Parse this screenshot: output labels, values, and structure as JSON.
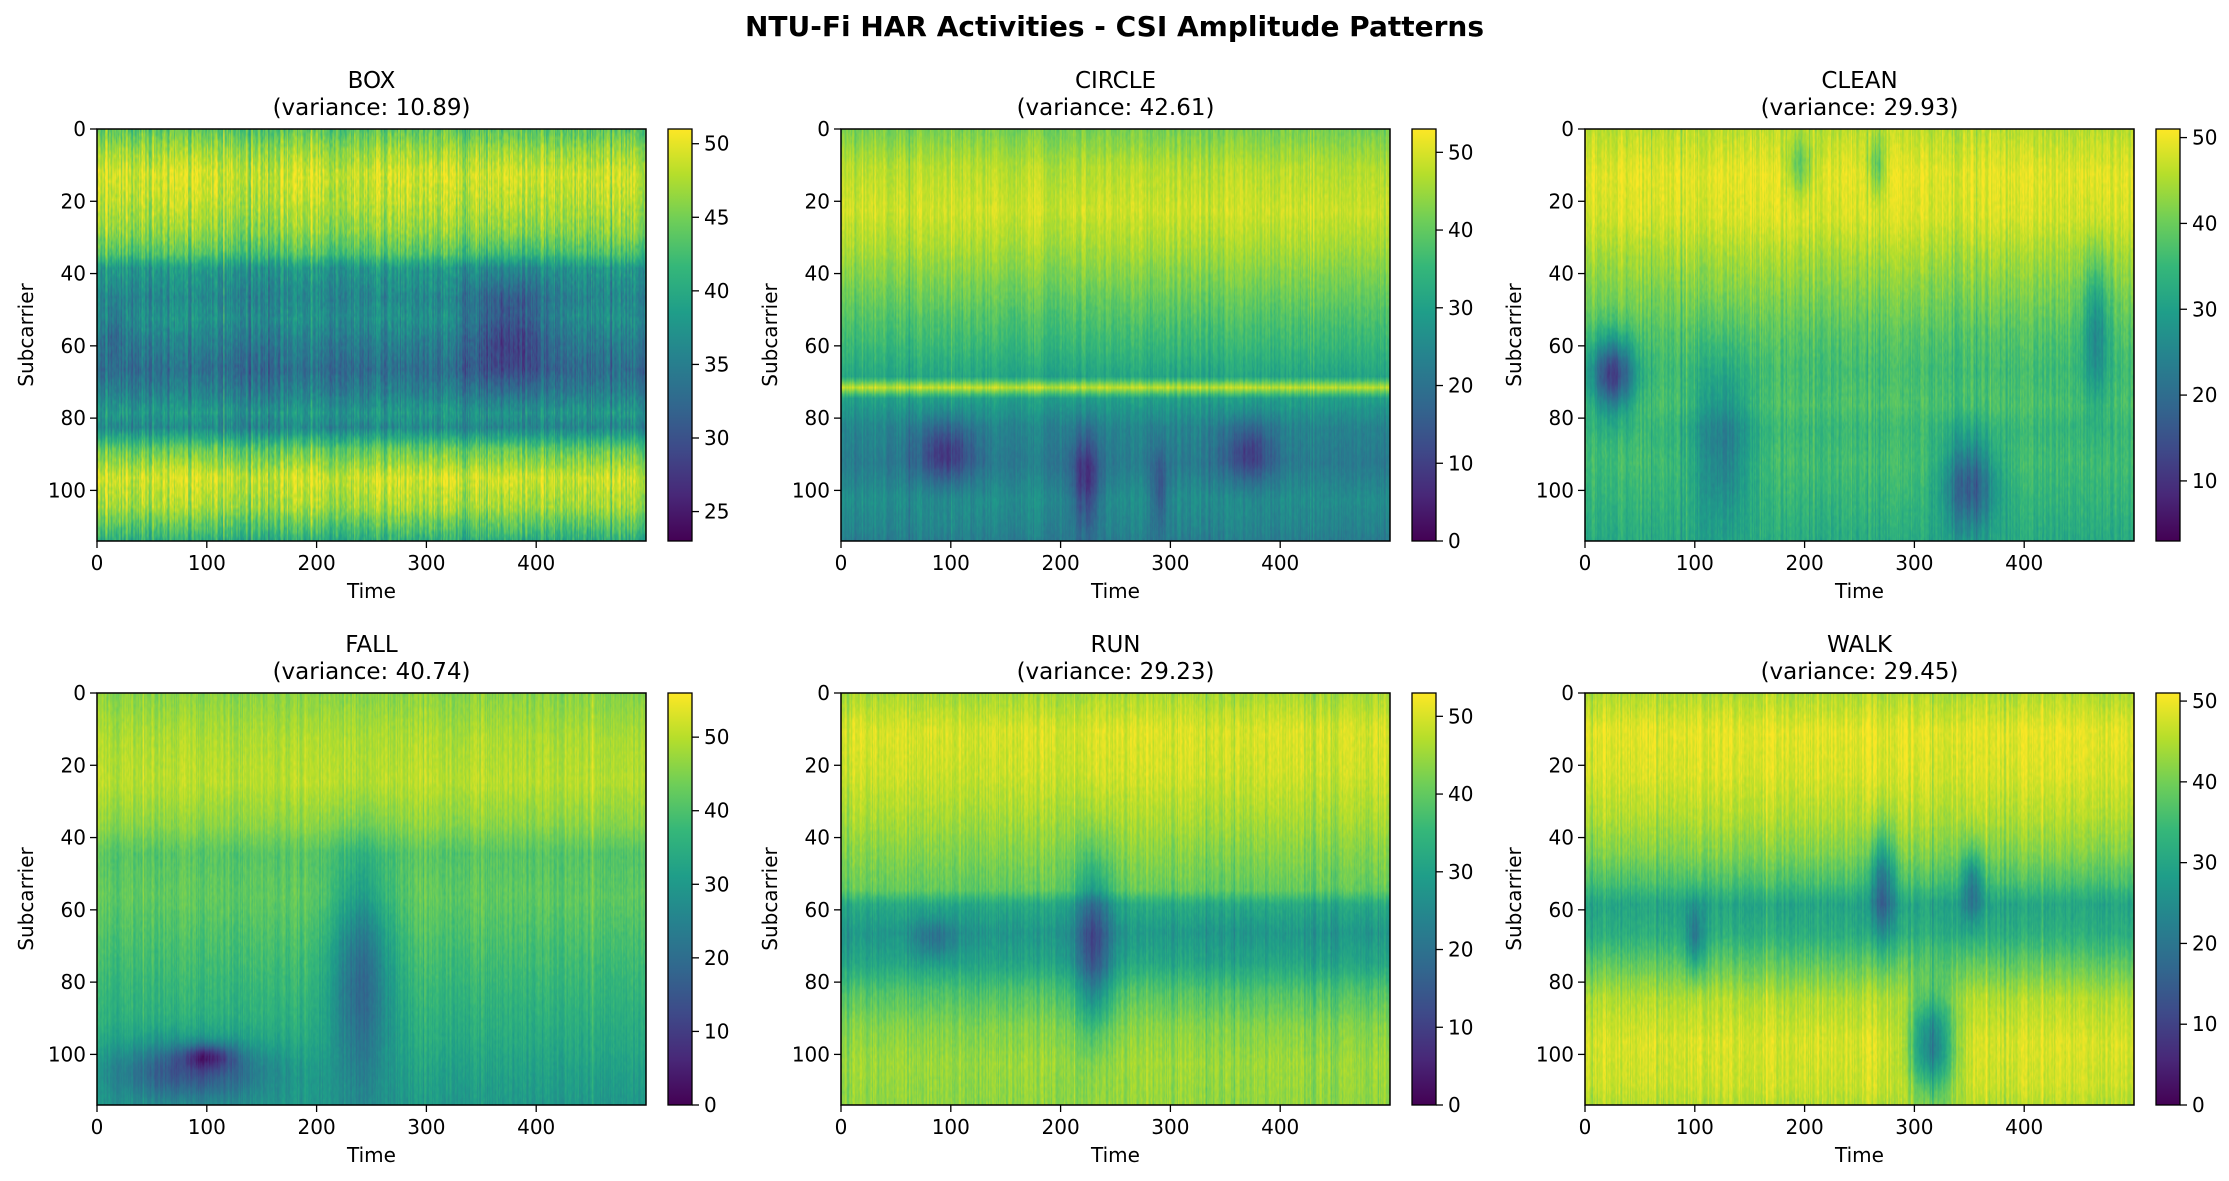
{
  "figure": {
    "title": "NTU-Fi HAR Activities - CSI Amplitude Patterns",
    "colormap": "viridis"
  },
  "chart_data": [
    {
      "type": "heatmap",
      "title": "BOX",
      "subtitle": "(variance: 10.89)",
      "xlabel": "Time",
      "ylabel": "Subcarrier",
      "xlim": [
        0,
        500
      ],
      "ylim": [
        114,
        0
      ],
      "xticks": [
        "0",
        "100",
        "200",
        "300",
        "400"
      ],
      "yticks": [
        "0",
        "20",
        "40",
        "60",
        "80",
        "100"
      ],
      "colorbar": {
        "min": 23,
        "max": 51,
        "ticks": [
          "25",
          "30",
          "35",
          "40",
          "45",
          "50"
        ]
      },
      "row_profile": [
        [
          0,
          44
        ],
        [
          6,
          47
        ],
        [
          12,
          49
        ],
        [
          20,
          48
        ],
        [
          28,
          46
        ],
        [
          34,
          43
        ],
        [
          38,
          38
        ],
        [
          46,
          36
        ],
        [
          52,
          37
        ],
        [
          58,
          35
        ],
        [
          66,
          33
        ],
        [
          72,
          35
        ],
        [
          78,
          38
        ],
        [
          82,
          36
        ],
        [
          88,
          44
        ],
        [
          96,
          49
        ],
        [
          104,
          47
        ],
        [
          110,
          43
        ],
        [
          114,
          40
        ]
      ],
      "features": [
        {
          "t0": 330,
          "t1": 420,
          "s0": 35,
          "s1": 75,
          "depth": 7
        },
        {
          "t0": 0,
          "t1": 30,
          "s0": 45,
          "s1": 65,
          "depth": 3
        }
      ]
    },
    {
      "type": "heatmap",
      "title": "CIRCLE",
      "subtitle": "(variance: 42.61)",
      "xlabel": "Time",
      "ylabel": "Subcarrier",
      "xlim": [
        0,
        500
      ],
      "ylim": [
        114,
        0
      ],
      "xticks": [
        "0",
        "100",
        "200",
        "300",
        "400"
      ],
      "yticks": [
        "0",
        "20",
        "40",
        "60",
        "80",
        "100"
      ],
      "colorbar": {
        "min": 0,
        "max": 53,
        "ticks": [
          "0",
          "10",
          "20",
          "30",
          "40",
          "50"
        ]
      },
      "row_profile": [
        [
          0,
          42
        ],
        [
          10,
          47
        ],
        [
          22,
          49
        ],
        [
          32,
          46
        ],
        [
          42,
          42
        ],
        [
          52,
          38
        ],
        [
          60,
          35
        ],
        [
          68,
          31
        ],
        [
          71,
          48
        ],
        [
          74,
          30
        ],
        [
          82,
          24
        ],
        [
          92,
          22
        ],
        [
          102,
          26
        ],
        [
          110,
          24
        ],
        [
          114,
          22
        ]
      ],
      "features": [
        {
          "t0": 60,
          "t1": 130,
          "s0": 78,
          "s1": 100,
          "depth": 14
        },
        {
          "t0": 205,
          "t1": 240,
          "s0": 80,
          "s1": 114,
          "depth": 16
        },
        {
          "t0": 340,
          "t1": 400,
          "s0": 78,
          "s1": 100,
          "depth": 13
        },
        {
          "t0": 280,
          "t1": 300,
          "s0": 85,
          "s1": 114,
          "depth": 10
        }
      ]
    },
    {
      "type": "heatmap",
      "title": "CLEAN",
      "subtitle": "(variance: 29.93)",
      "xlabel": "Time",
      "ylabel": "Subcarrier",
      "xlim": [
        0,
        500
      ],
      "ylim": [
        114,
        0
      ],
      "xticks": [
        "0",
        "100",
        "200",
        "300",
        "400"
      ],
      "yticks": [
        "0",
        "20",
        "40",
        "60",
        "80",
        "100"
      ],
      "colorbar": {
        "min": 3,
        "max": 51,
        "ticks": [
          "10",
          "20",
          "30",
          "40",
          "50"
        ]
      },
      "row_profile": [
        [
          0,
          46
        ],
        [
          12,
          49
        ],
        [
          24,
          48
        ],
        [
          36,
          44
        ],
        [
          46,
          41
        ],
        [
          56,
          38
        ],
        [
          66,
          36
        ],
        [
          76,
          37
        ],
        [
          82,
          35
        ],
        [
          92,
          36
        ],
        [
          104,
          34
        ],
        [
          114,
          32
        ]
      ],
      "features": [
        {
          "t0": 0,
          "t1": 50,
          "s0": 55,
          "s1": 80,
          "depth": 24
        },
        {
          "t0": 90,
          "t1": 160,
          "s0": 60,
          "s1": 114,
          "depth": 12
        },
        {
          "t0": 320,
          "t1": 380,
          "s0": 82,
          "s1": 114,
          "depth": 18
        },
        {
          "t0": 180,
          "t1": 210,
          "s0": 0,
          "s1": 20,
          "depth": 9
        },
        {
          "t0": 255,
          "t1": 275,
          "s0": 0,
          "s1": 20,
          "depth": 9
        },
        {
          "t0": 450,
          "t1": 480,
          "s0": 30,
          "s1": 80,
          "depth": 12
        }
      ]
    },
    {
      "type": "heatmap",
      "title": "FALL",
      "subtitle": "(variance: 40.74)",
      "xlabel": "Time",
      "ylabel": "Subcarrier",
      "xlim": [
        0,
        500
      ],
      "ylim": [
        114,
        0
      ],
      "xticks": [
        "0",
        "100",
        "200",
        "300",
        "400"
      ],
      "yticks": [
        "0",
        "20",
        "40",
        "60",
        "80",
        "100"
      ],
      "colorbar": {
        "min": 0,
        "max": 56,
        "ticks": [
          "0",
          "10",
          "20",
          "30",
          "40",
          "50"
        ]
      },
      "row_profile": [
        [
          0,
          46
        ],
        [
          12,
          49
        ],
        [
          24,
          50
        ],
        [
          36,
          46
        ],
        [
          44,
          41
        ],
        [
          56,
          42
        ],
        [
          66,
          40
        ],
        [
          76,
          38
        ],
        [
          86,
          36
        ],
        [
          96,
          34
        ],
        [
          104,
          32
        ],
        [
          114,
          30
        ]
      ],
      "features": [
        {
          "t0": 0,
          "t1": 170,
          "s0": 94,
          "s1": 114,
          "depth": 18
        },
        {
          "t0": 70,
          "t1": 130,
          "s0": 96,
          "s1": 104,
          "depth": 16
        },
        {
          "t0": 205,
          "t1": 275,
          "s0": 40,
          "s1": 114,
          "depth": 18
        }
      ]
    },
    {
      "type": "heatmap",
      "title": "RUN",
      "subtitle": "(variance: 29.23)",
      "xlabel": "Time",
      "ylabel": "Subcarrier",
      "xlim": [
        0,
        500
      ],
      "ylim": [
        114,
        0
      ],
      "xticks": [
        "0",
        "100",
        "200",
        "300",
        "400"
      ],
      "yticks": [
        "0",
        "20",
        "40",
        "60",
        "80",
        "100"
      ],
      "colorbar": {
        "min": 0,
        "max": 53,
        "ticks": [
          "0",
          "10",
          "20",
          "30",
          "40",
          "50"
        ]
      },
      "row_profile": [
        [
          0,
          46
        ],
        [
          10,
          50
        ],
        [
          22,
          49
        ],
        [
          34,
          46
        ],
        [
          44,
          43
        ],
        [
          54,
          40
        ],
        [
          58,
          32
        ],
        [
          66,
          28
        ],
        [
          74,
          31
        ],
        [
          82,
          38
        ],
        [
          92,
          43
        ],
        [
          102,
          45
        ],
        [
          114,
          44
        ]
      ],
      "features": [
        {
          "t0": 210,
          "t1": 250,
          "s0": 40,
          "s1": 100,
          "depth": 18
        },
        {
          "t0": 60,
          "t1": 110,
          "s0": 60,
          "s1": 75,
          "depth": 8
        }
      ]
    },
    {
      "type": "heatmap",
      "title": "WALK",
      "subtitle": "(variance: 29.45)",
      "xlabel": "Time",
      "ylabel": "Subcarrier",
      "xlim": [
        0,
        500
      ],
      "ylim": [
        114,
        0
      ],
      "xticks": [
        "0",
        "100",
        "200",
        "300",
        "400"
      ],
      "yticks": [
        "0",
        "20",
        "40",
        "60",
        "80",
        "100"
      ],
      "colorbar": {
        "min": 0,
        "max": 51,
        "ticks": [
          "0",
          "10",
          "20",
          "30",
          "40",
          "50"
        ]
      },
      "row_profile": [
        [
          0,
          45
        ],
        [
          10,
          49
        ],
        [
          22,
          48
        ],
        [
          34,
          45
        ],
        [
          44,
          41
        ],
        [
          52,
          36
        ],
        [
          58,
          30
        ],
        [
          66,
          32
        ],
        [
          74,
          38
        ],
        [
          84,
          45
        ],
        [
          96,
          48
        ],
        [
          108,
          47
        ],
        [
          114,
          45
        ]
      ],
      "features": [
        {
          "t0": 290,
          "t1": 340,
          "s0": 80,
          "s1": 114,
          "depth": 25
        },
        {
          "t0": 255,
          "t1": 285,
          "s0": 35,
          "s1": 70,
          "depth": 16
        },
        {
          "t0": 340,
          "t1": 365,
          "s0": 40,
          "s1": 65,
          "depth": 14
        },
        {
          "t0": 90,
          "t1": 110,
          "s0": 55,
          "s1": 80,
          "depth": 12
        }
      ]
    }
  ]
}
